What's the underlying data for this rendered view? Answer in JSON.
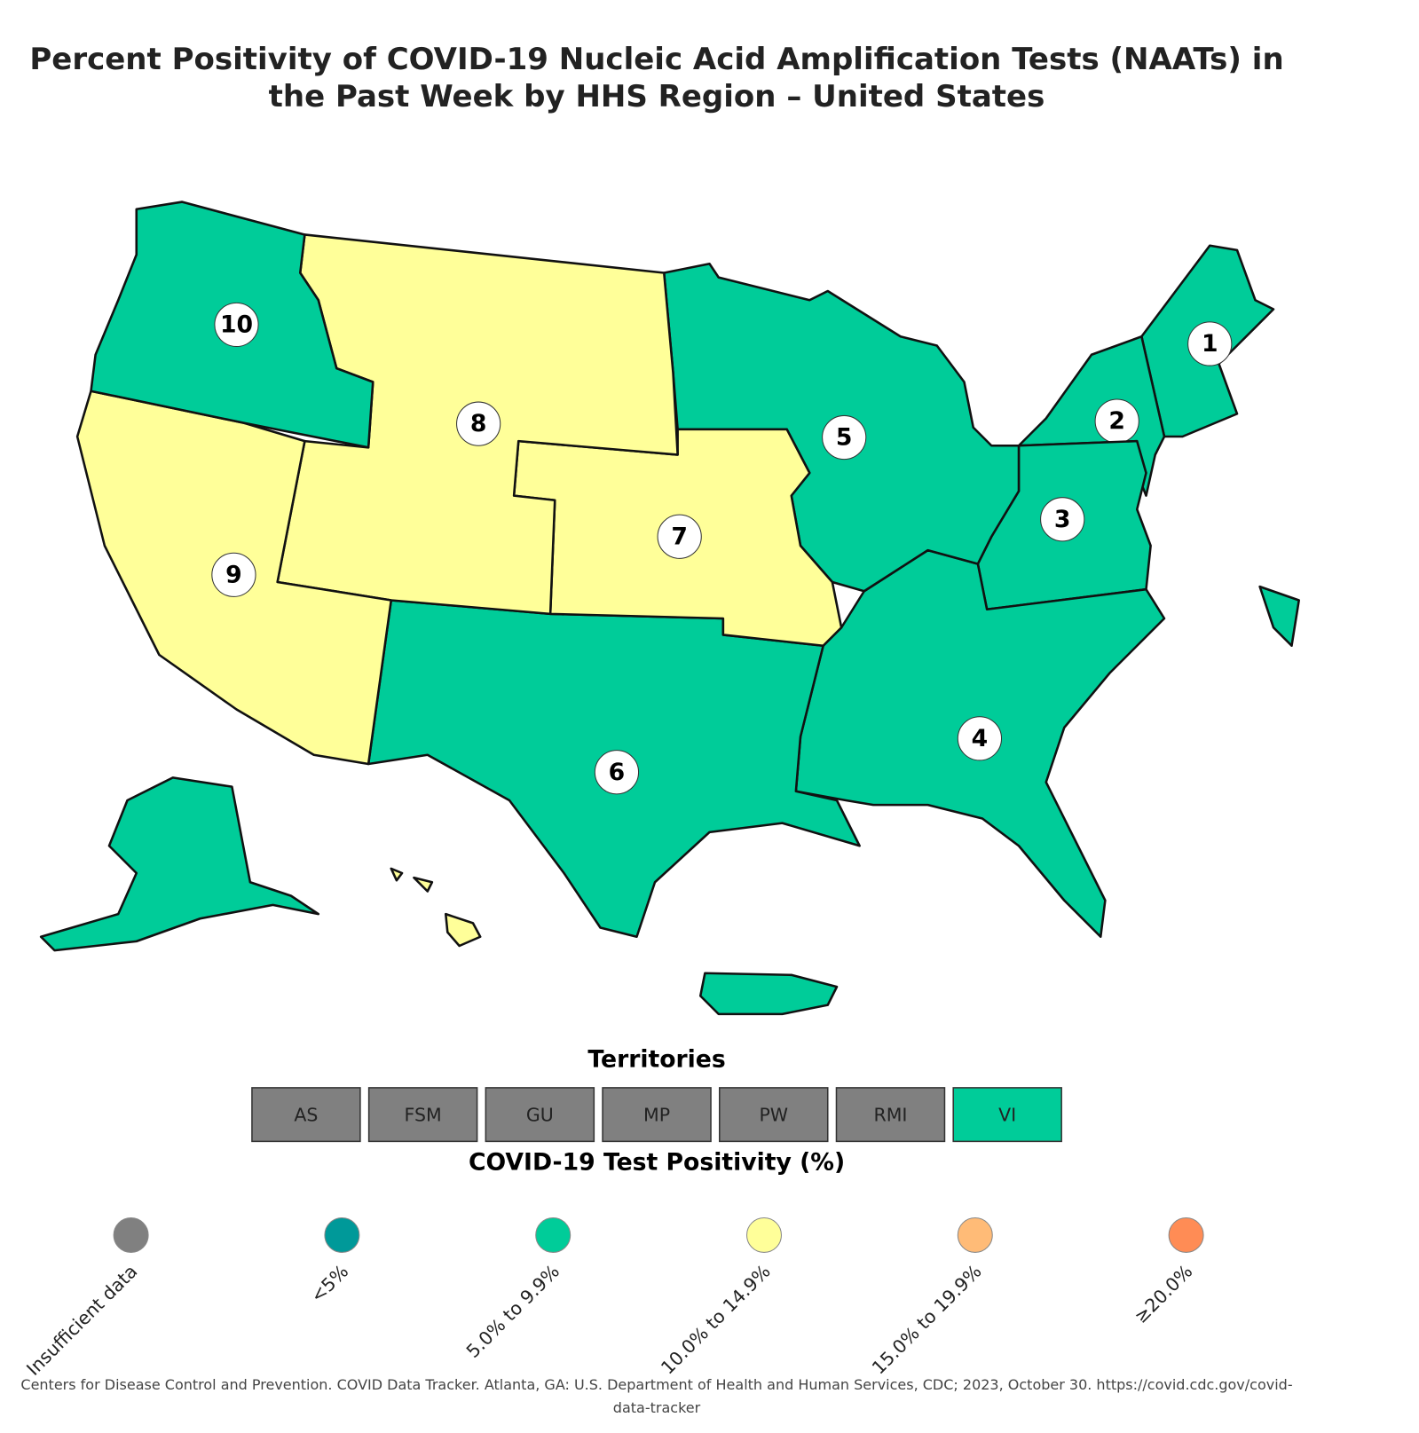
{
  "title": "Percent Positivity of COVID-19 Nucleic Acid Amplification Tests (NAATs) in the Past Week by HHS Region – United States",
  "regions": [
    {
      "label": "1",
      "color": "#00cc99"
    },
    {
      "label": "2",
      "color": "#00cc99"
    },
    {
      "label": "3",
      "color": "#00cc99"
    },
    {
      "label": "4",
      "color": "#00cc99"
    },
    {
      "label": "5",
      "color": "#00cc99"
    },
    {
      "label": "6",
      "color": "#00cc99"
    },
    {
      "label": "7",
      "color": "#ffff99"
    },
    {
      "label": "8",
      "color": "#ffff99"
    },
    {
      "label": "9",
      "color": "#ffff99"
    },
    {
      "label": "10",
      "color": "#00cc99"
    }
  ],
  "territories_title": "Territories",
  "territories": [
    {
      "label": "AS",
      "color": "#808080"
    },
    {
      "label": "FSM",
      "color": "#808080"
    },
    {
      "label": "GU",
      "color": "#808080"
    },
    {
      "label": "MP",
      "color": "#808080"
    },
    {
      "label": "PW",
      "color": "#808080"
    },
    {
      "label": "RMI",
      "color": "#808080"
    },
    {
      "label": "VI",
      "color": "#00cc99"
    }
  ],
  "legend": {
    "title": "COVID-19 Test Positivity (%)",
    "items": [
      {
        "label": "Insufficient data",
        "color": "#808080"
      },
      {
        "label": "<5%",
        "color": "#009999"
      },
      {
        "label": "5.0% to 9.9%",
        "color": "#00cc99"
      },
      {
        "label": "10.0% to 14.9%",
        "color": "#ffff99"
      },
      {
        "label": "15.0% to 19.9%",
        "color": "#ffbb77"
      },
      {
        "label": "≥20.0%",
        "color": "#ff8c55"
      }
    ]
  },
  "source": "Centers for Disease Control and Prevention. COVID Data Tracker. Atlanta, GA: U.S. Department of Health and Human Services, CDC; 2023, October 30. https://covid.cdc.gov/covid-data-tracker"
}
